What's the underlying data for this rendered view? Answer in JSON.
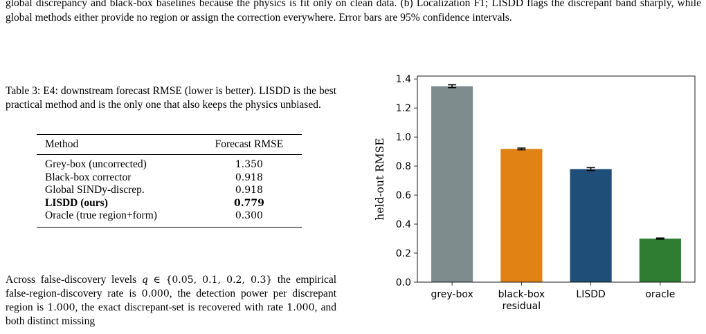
{
  "figure_caption": "global discrepancy and black-box baselines because the physics is fit only on clean data. (b) Localization F1; LISDD flags the discrepant band sharply, while global methods either provide no region or assign the correction everywhere. Error bars are 95% confidence intervals.",
  "table": {
    "caption": "Table 3: E4: downstream forecast RMSE (lower is better). LISDD is the best practical method and is the only one that also keeps the physics unbiased.",
    "headers": [
      "Method",
      "Forecast RMSE"
    ],
    "rows": [
      {
        "method": "Grey-box (uncorrected)",
        "rmse": "1.350"
      },
      {
        "method": "Black-box corrector",
        "rmse": "0.918"
      },
      {
        "method": "Global SINDy-discrep.",
        "rmse": "0.918"
      },
      {
        "method": "LISDD (ours)",
        "rmse": "0.779"
      },
      {
        "method": "Oracle (true region+form)",
        "rmse": "0.300"
      }
    ]
  },
  "paragraph": {
    "p1": "Across false-discovery levels ",
    "q": "q",
    "in": "∈",
    "set": "{0.05, 0.1, 0.2, 0.3}",
    "p2": " the empirical false-region-discovery rate is ",
    "v1": "0.000",
    "p3": ", the detection power per discrepant region is ",
    "v2": "1.000",
    "p4": ", the exact discrepant-set is recovered with rate ",
    "v3": "1.000",
    "p5": ", and both distinct missing"
  },
  "chart_data": {
    "type": "bar",
    "categories": [
      "grey-box",
      "black-box\nresidual",
      "LISDD",
      "oracle"
    ],
    "values": [
      1.35,
      0.918,
      0.779,
      0.3
    ],
    "errors": [
      0.01,
      0.006,
      0.01,
      0.004
    ],
    "colors": [
      "#7f8c8d",
      "#e08214",
      "#1f4e79",
      "#2e7d32"
    ],
    "ylabel": "held-out RMSE",
    "ylim": [
      0,
      1.42
    ],
    "yticks": [
      "0.0",
      "0.2",
      "0.4",
      "0.6",
      "0.8",
      "1.0",
      "1.2",
      "1.4"
    ],
    "grid": false
  }
}
